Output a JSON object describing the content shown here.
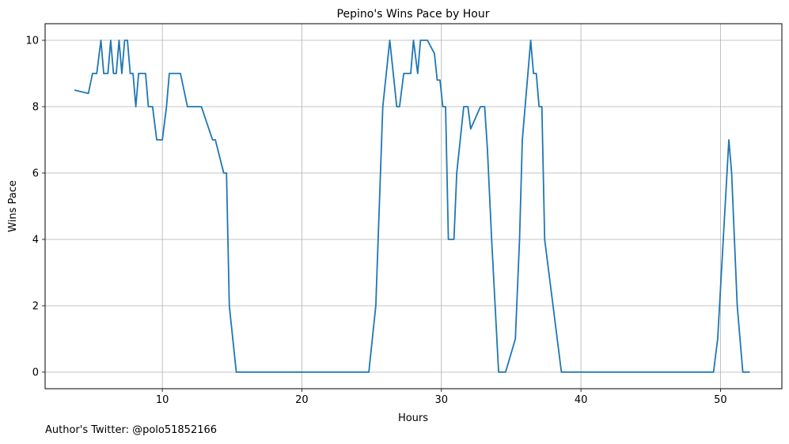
{
  "chart_data": {
    "type": "line",
    "title": "Pepino's Wins Pace by Hour",
    "xlabel": "Hours",
    "ylabel": "Wins Pace",
    "xlim": [
      1.6,
      54.4
    ],
    "ylim": [
      -0.5,
      10.5
    ],
    "xticks": [
      10,
      20,
      30,
      40,
      50
    ],
    "yticks": [
      0,
      2,
      4,
      6,
      8,
      10
    ],
    "grid": true,
    "line_color": "#1f77b4",
    "series": [
      {
        "x": [
          3.7,
          4.2,
          4.7,
          5.0,
          5.3,
          5.6,
          5.8,
          6.1,
          6.3,
          6.5,
          6.7,
          6.9,
          7.1,
          7.3,
          7.5,
          7.7,
          7.9,
          8.1,
          8.3,
          8.5,
          8.8,
          9.0,
          9.3,
          9.6,
          9.8,
          10.0,
          10.3,
          10.5,
          11.3,
          11.8,
          12.6,
          12.8,
          13.6,
          13.8,
          14.4,
          14.6,
          14.8,
          15.3,
          15.8,
          24.8,
          25.3,
          25.8,
          26.3,
          26.8,
          27.0,
          27.3,
          27.8,
          28.0,
          28.3,
          28.5,
          29.0,
          29.5,
          29.7,
          29.9,
          30.1,
          30.3,
          30.5,
          30.9,
          31.1,
          31.6,
          31.9,
          32.1,
          32.8,
          33.1,
          33.3,
          33.6,
          34.1,
          34.6,
          35.3,
          35.6,
          35.8,
          36.2,
          36.4,
          36.6,
          36.8,
          37.0,
          37.2,
          37.4,
          38.6,
          49.5,
          49.8,
          50.2,
          50.6,
          50.8,
          51.2,
          51.6,
          52.1
        ],
        "y": [
          8.5,
          8.45,
          8.4,
          9,
          9,
          10,
          9,
          9,
          10,
          9,
          9,
          10,
          9,
          10,
          10,
          9,
          9,
          8,
          9,
          9,
          9,
          8,
          8,
          7,
          7,
          7,
          8,
          9,
          9,
          8,
          8,
          8,
          7,
          7,
          6,
          6,
          2,
          0,
          0,
          0,
          2,
          8,
          10,
          8,
          8,
          9,
          9,
          10,
          9,
          10,
          10,
          9.6,
          8.8,
          8.8,
          8,
          8,
          4,
          4,
          6,
          8,
          8,
          7.33,
          8,
          8,
          6.7,
          4,
          0,
          0,
          1,
          4,
          7,
          9,
          10,
          9,
          9,
          8,
          8,
          4,
          0,
          0,
          1,
          4,
          7,
          6,
          2,
          0,
          0
        ]
      }
    ]
  },
  "footnote": "Author's Twitter: @polo51852166"
}
